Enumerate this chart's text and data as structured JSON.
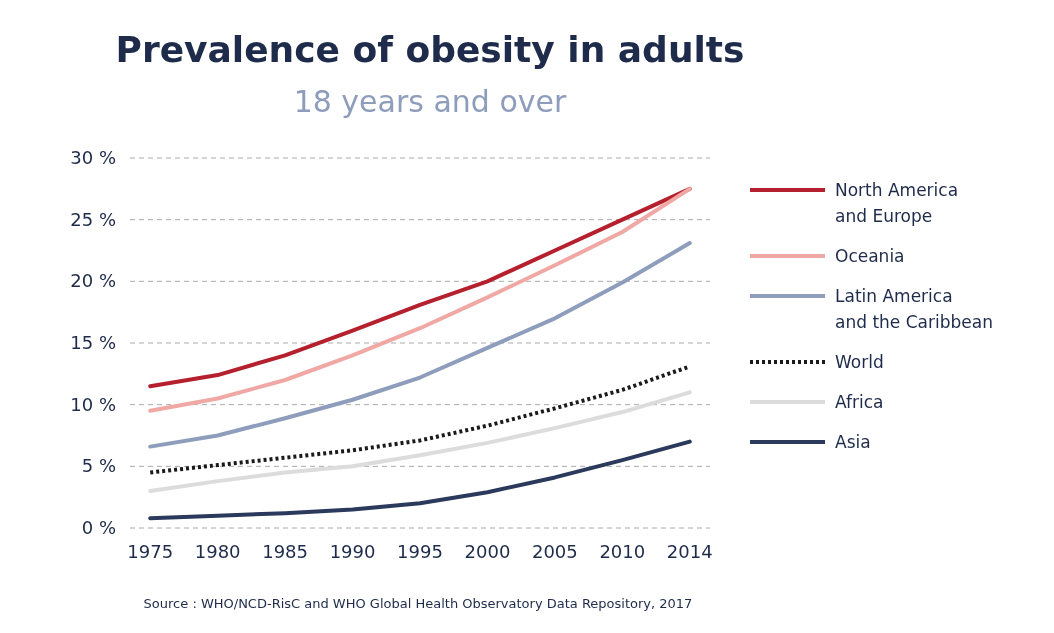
{
  "chart_data": {
    "type": "line",
    "title": "Prevalence of obesity in adults",
    "subtitle": "18 years and over",
    "categories": [
      "1975",
      "1980",
      "1985",
      "1990",
      "1995",
      "2000",
      "2005",
      "2010",
      "2014"
    ],
    "series": [
      {
        "name": "North America and Europe",
        "color": "#b5202e",
        "values": [
          11.5,
          12.4,
          14.0,
          16.0,
          18.1,
          20.0,
          22.5,
          25.0,
          27.5
        ]
      },
      {
        "name": "Oceania",
        "color": "#f0a8a4",
        "values": [
          9.5,
          10.5,
          12.0,
          14.0,
          16.2,
          18.7,
          21.3,
          24.0,
          27.5
        ]
      },
      {
        "name": "Latin America and the Caribbean",
        "color": "#8e9dbb",
        "values": [
          6.6,
          7.5,
          8.9,
          10.4,
          12.2,
          14.6,
          17.0,
          19.9,
          23.1
        ]
      },
      {
        "name": "World",
        "color": "#1a1a1a",
        "line_style": "dotted",
        "values": [
          4.5,
          5.1,
          5.7,
          6.3,
          7.1,
          8.3,
          9.7,
          11.2,
          13.1
        ]
      },
      {
        "name": "Africa",
        "color": "#dcdcdc",
        "values": [
          3.0,
          3.8,
          4.5,
          5.0,
          5.9,
          6.9,
          8.1,
          9.4,
          11.0
        ]
      },
      {
        "name": "Asia",
        "color": "#2b3a5c",
        "values": [
          0.8,
          1.0,
          1.2,
          1.5,
          2.0,
          2.9,
          4.1,
          5.5,
          7.0
        ]
      }
    ],
    "ylim": [
      0,
      30
    ],
    "yticks": [
      {
        "value": 0,
        "label": "0 %"
      },
      {
        "value": 5,
        "label": "5 %"
      },
      {
        "value": 10,
        "label": "10 %"
      },
      {
        "value": 15,
        "label": "15 %"
      },
      {
        "value": 20,
        "label": "20 %"
      },
      {
        "value": 25,
        "label": "25 %"
      },
      {
        "value": 30,
        "label": "30 %"
      }
    ],
    "grid": "y",
    "legend": "right",
    "line_style": "solid",
    "annotations": [
      "Source : WHO/NCD-RisC and WHO Global Health Observatory Data Repository, 2017"
    ]
  }
}
